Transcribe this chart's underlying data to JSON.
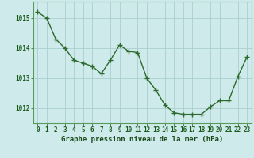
{
  "x": [
    0,
    1,
    2,
    3,
    4,
    5,
    6,
    7,
    8,
    9,
    10,
    11,
    12,
    13,
    14,
    15,
    16,
    17,
    18,
    19,
    20,
    21,
    22,
    23
  ],
  "y": [
    1015.2,
    1015.0,
    1014.3,
    1014.0,
    1013.6,
    1013.5,
    1013.4,
    1013.15,
    1013.6,
    1014.1,
    1013.9,
    1013.85,
    1013.0,
    1012.6,
    1012.1,
    1011.85,
    1011.8,
    1011.8,
    1011.8,
    1012.05,
    1012.25,
    1012.25,
    1013.05,
    1013.7
  ],
  "line_color": "#2d6a2d",
  "marker": "+",
  "marker_color": "#2d6a2d",
  "marker_size": 4,
  "marker_linewidth": 1.0,
  "background_color": "#ceeaea",
  "grid_color": "#aacece",
  "xlabel": "Graphe pression niveau de la mer (hPa)",
  "xlabel_color": "#1a4a1a",
  "xlabel_fontsize": 6.5,
  "tick_color": "#1a5a1a",
  "tick_fontsize": 5.5,
  "ytick_labels": [
    "1012",
    "1013",
    "1014",
    "1015"
  ],
  "ytick_values": [
    1012,
    1013,
    1014,
    1015
  ],
  "ylim": [
    1011.5,
    1015.55
  ],
  "xlim": [
    -0.5,
    23.5
  ],
  "xtick_values": [
    0,
    1,
    2,
    3,
    4,
    5,
    6,
    7,
    8,
    9,
    10,
    11,
    12,
    13,
    14,
    15,
    16,
    17,
    18,
    19,
    20,
    21,
    22,
    23
  ],
  "border_color": "#5a9a5a",
  "line_width": 1.0
}
